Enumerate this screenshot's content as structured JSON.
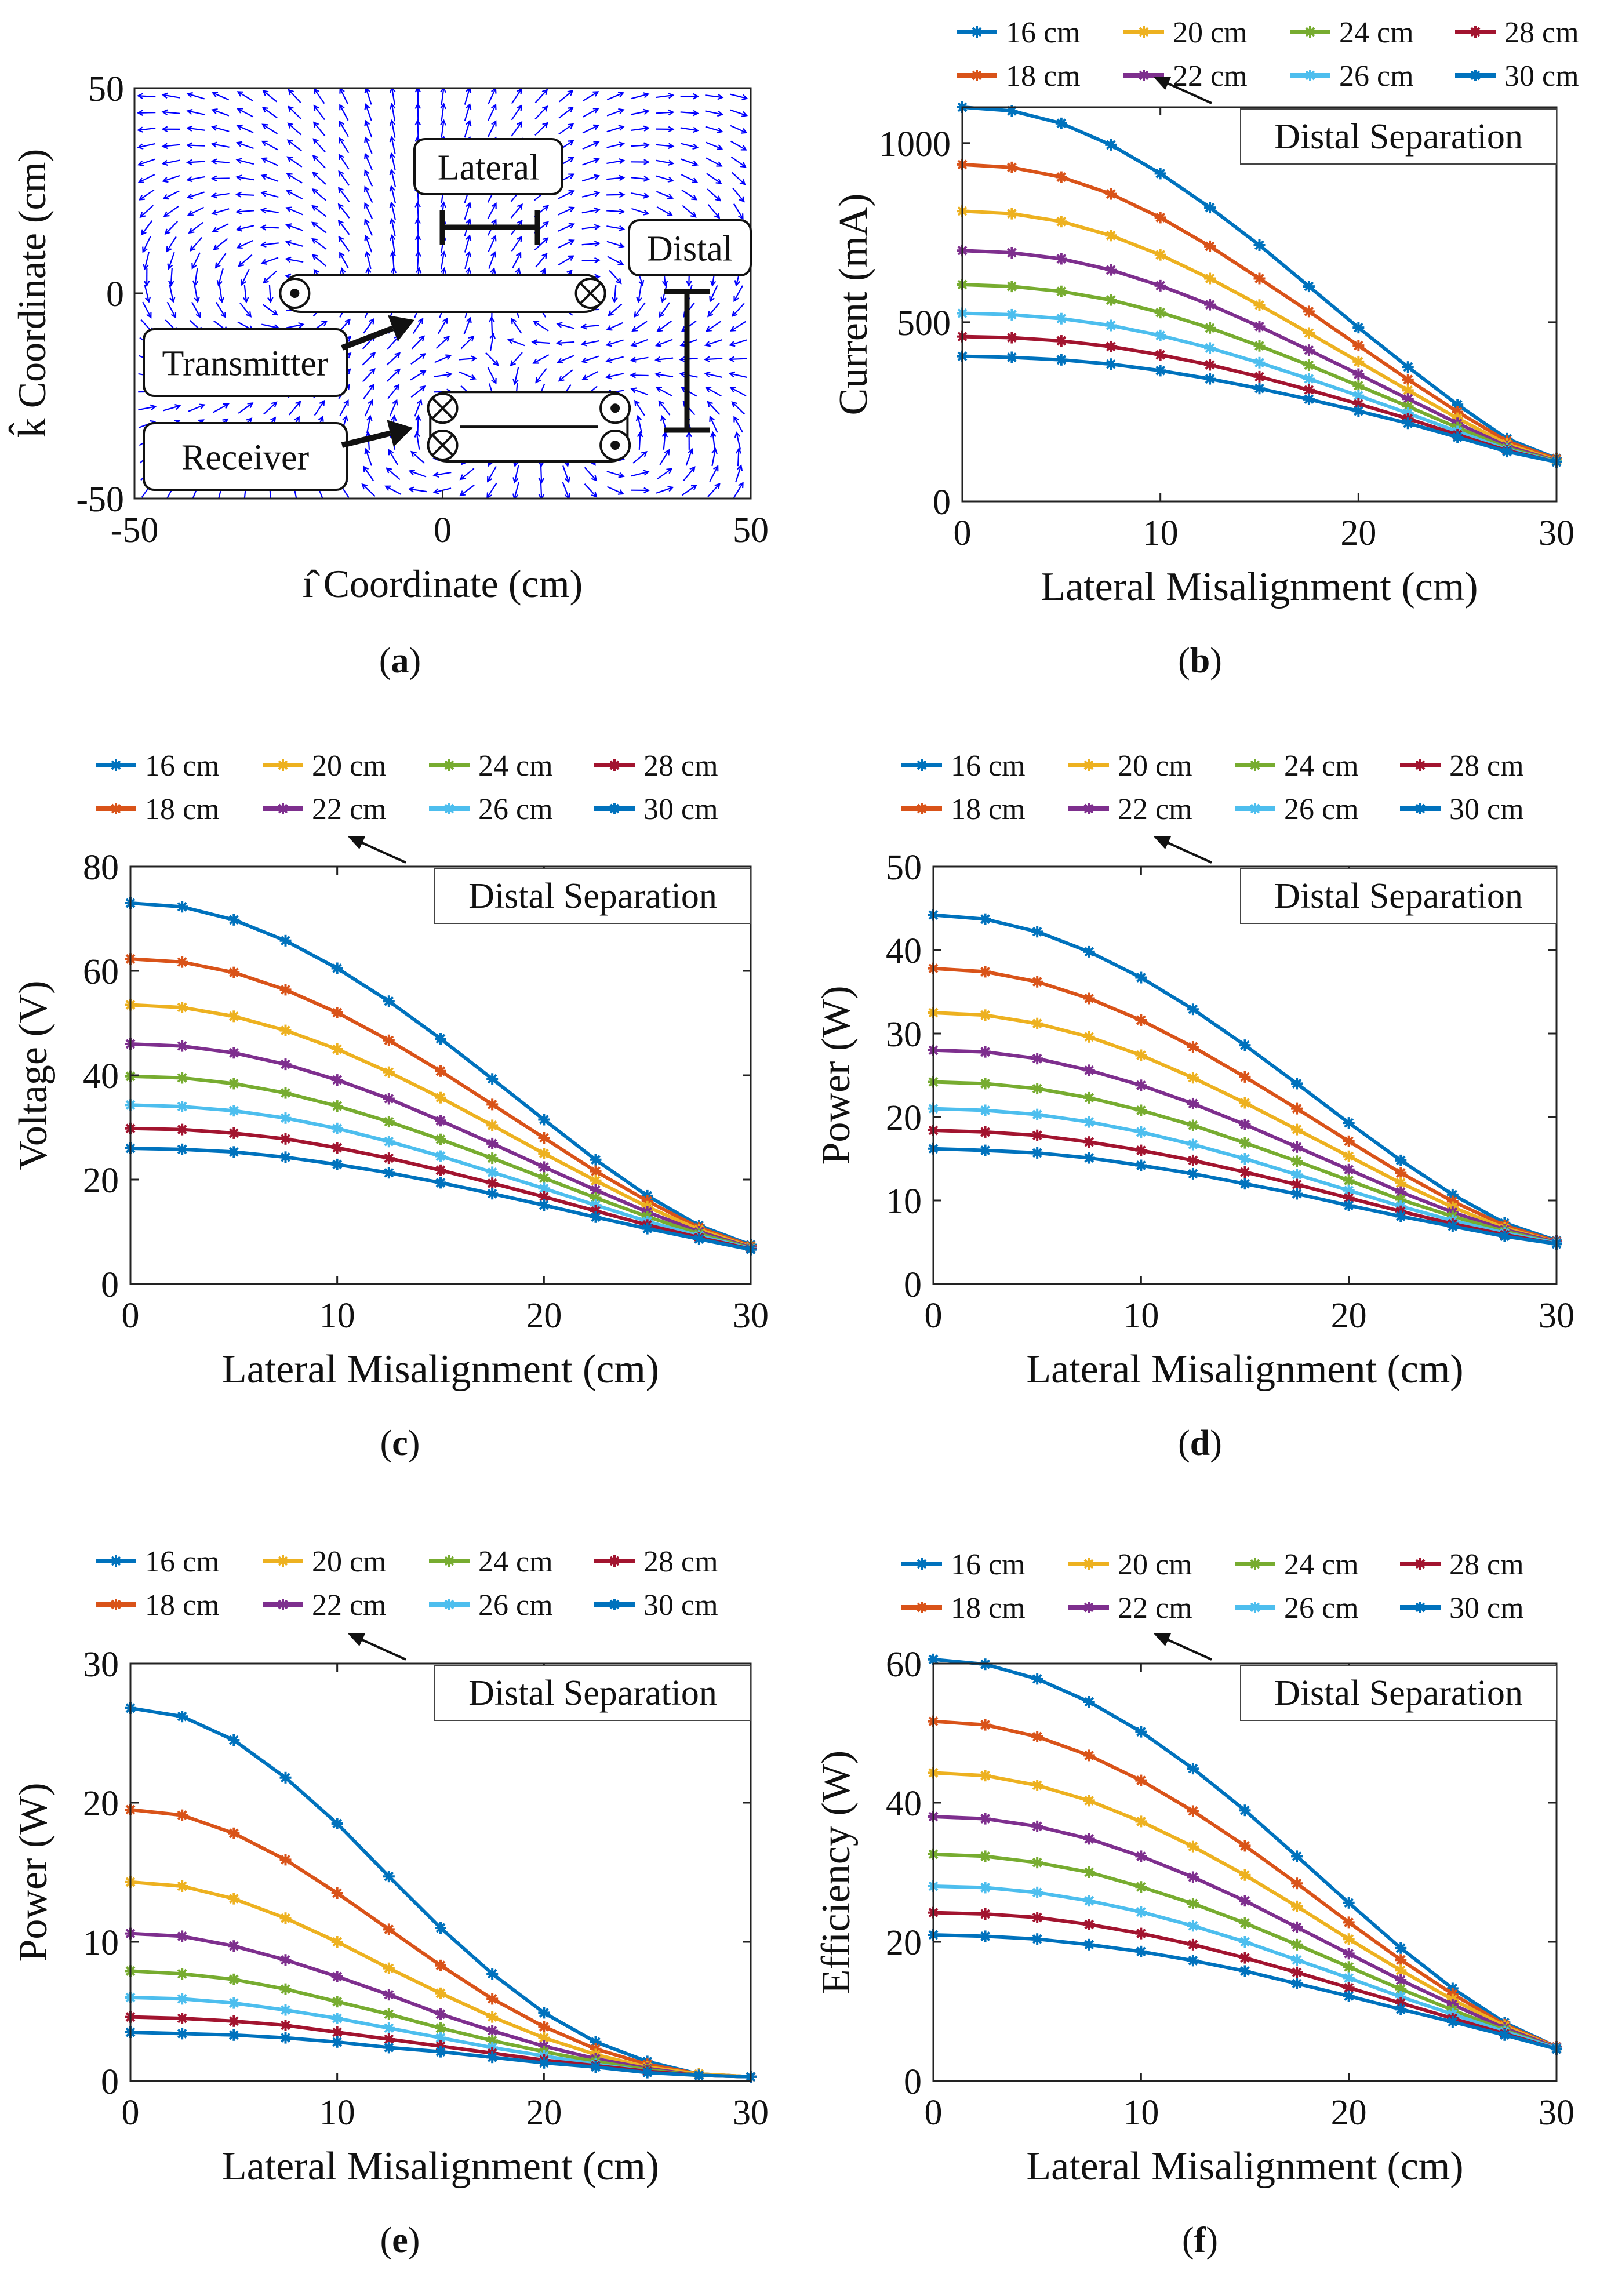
{
  "figure": {
    "captions": [
      "(a)",
      "(b)",
      "(c)",
      "(d)",
      "(e)",
      "(f)"
    ],
    "legend": {
      "entries": [
        "16 cm",
        "18 cm",
        "20 cm",
        "22 cm",
        "24 cm",
        "26 cm",
        "28 cm",
        "30 cm"
      ],
      "colors": [
        "#0072BD",
        "#D95319",
        "#EDB120",
        "#7E2F8E",
        "#77AC30",
        "#4DBEEE",
        "#A2142F",
        "#0072BD"
      ],
      "annotation": "Distal Separation"
    }
  },
  "chart_data": [
    {
      "id": "a",
      "type": "vector-field",
      "title": "",
      "xlabel": "ı̂ Coordinate (cm)",
      "ylabel": "k̂ Coordinate (cm)",
      "xlim": [
        -50,
        50
      ],
      "ylim": [
        -50,
        50
      ],
      "xticks": [
        "-50",
        "0",
        "50"
      ],
      "yticks": [
        "50",
        "0",
        "-50"
      ],
      "field_color": "#0000FF",
      "labels": {
        "lateral": "Lateral",
        "distal": "Distal",
        "transmitter": "Transmitter",
        "receiver": "Receiver"
      },
      "transmitter": {
        "x": [
          -24,
          24
        ],
        "y": 0
      },
      "receiver": {
        "x": [
          0,
          28
        ],
        "y": [
          -28,
          -37
        ]
      }
    },
    {
      "id": "b",
      "type": "line",
      "xlabel": "Lateral Misalignment (cm)",
      "ylabel": "Current (mA)",
      "xlim": [
        0,
        30
      ],
      "ylim": [
        0,
        1100
      ],
      "xticks": [
        0,
        10,
        20,
        30
      ],
      "yticks": [
        0,
        500,
        1000
      ],
      "x": [
        0,
        2.5,
        5,
        7.5,
        10,
        12.5,
        15,
        17.5,
        20,
        22.5,
        25,
        27.5,
        30
      ],
      "series": [
        {
          "name": "16 cm",
          "values": [
            1100,
            1090,
            1055,
            995,
            915,
            820,
            715,
            600,
            485,
            375,
            270,
            175,
            120
          ]
        },
        {
          "name": "18 cm",
          "values": [
            940,
            932,
            905,
            858,
            792,
            712,
            622,
            530,
            435,
            340,
            250,
            168,
            118
          ]
        },
        {
          "name": "20 cm",
          "values": [
            810,
            803,
            781,
            742,
            688,
            622,
            548,
            470,
            390,
            310,
            232,
            160,
            115
          ]
        },
        {
          "name": "22 cm",
          "values": [
            700,
            694,
            677,
            646,
            602,
            549,
            488,
            422,
            355,
            286,
            218,
            154,
            113
          ]
        },
        {
          "name": "24 cm",
          "values": [
            605,
            600,
            586,
            562,
            527,
            484,
            434,
            380,
            323,
            265,
            206,
            149,
            112
          ]
        },
        {
          "name": "26 cm",
          "values": [
            525,
            521,
            510,
            491,
            463,
            428,
            387,
            342,
            295,
            246,
            195,
            145,
            111
          ]
        },
        {
          "name": "28 cm",
          "values": [
            460,
            457,
            448,
            432,
            409,
            381,
            348,
            311,
            272,
            231,
            186,
            142,
            110
          ]
        },
        {
          "name": "30 cm",
          "values": [
            405,
            402,
            395,
            383,
            365,
            342,
            315,
            285,
            252,
            218,
            179,
            139,
            110
          ]
        }
      ]
    },
    {
      "id": "c",
      "type": "line",
      "xlabel": "Lateral Misalignment (cm)",
      "ylabel": "Voltage (V)",
      "xlim": [
        0,
        30
      ],
      "ylim": [
        0,
        80
      ],
      "xticks": [
        0,
        10,
        20,
        30
      ],
      "yticks": [
        0,
        20,
        40,
        60,
        80
      ],
      "x": [
        0,
        2.5,
        5,
        7.5,
        10,
        12.5,
        15,
        17.5,
        20,
        22.5,
        25,
        27.5,
        30
      ],
      "series": [
        {
          "name": "16 cm",
          "values": [
            73,
            72.3,
            69.8,
            65.8,
            60.5,
            54.2,
            47,
            39.3,
            31.5,
            23.8,
            16.9,
            11.2,
            7.5
          ]
        },
        {
          "name": "18 cm",
          "values": [
            62.3,
            61.7,
            59.7,
            56.4,
            52,
            46.7,
            40.8,
            34.4,
            28,
            21.6,
            15.9,
            10.8,
            7.3
          ]
        },
        {
          "name": "20 cm",
          "values": [
            53.5,
            53,
            51.3,
            48.6,
            45,
            40.6,
            35.7,
            30.4,
            25,
            19.8,
            14.8,
            10.4,
            7.1
          ]
        },
        {
          "name": "22 cm",
          "values": [
            46,
            45.6,
            44.3,
            42.1,
            39.1,
            35.5,
            31.3,
            26.9,
            22.4,
            18,
            13.8,
            10,
            7
          ]
        },
        {
          "name": "24 cm",
          "values": [
            39.8,
            39.5,
            38.4,
            36.6,
            34.1,
            31.1,
            27.7,
            24.1,
            20.3,
            16.5,
            12.9,
            9.6,
            6.9
          ]
        },
        {
          "name": "26 cm",
          "values": [
            34.3,
            34,
            33.2,
            31.8,
            29.8,
            27.3,
            24.5,
            21.4,
            18.3,
            15.1,
            12,
            9.2,
            6.8
          ]
        },
        {
          "name": "28 cm",
          "values": [
            29.8,
            29.6,
            28.9,
            27.8,
            26.1,
            24.1,
            21.8,
            19.3,
            16.7,
            14,
            11.3,
            8.9,
            6.7
          ]
        },
        {
          "name": "30 cm",
          "values": [
            26,
            25.8,
            25.3,
            24.3,
            22.9,
            21.3,
            19.4,
            17.3,
            15.1,
            12.8,
            10.6,
            8.6,
            6.6
          ]
        }
      ]
    },
    {
      "id": "d",
      "type": "line",
      "xlabel": "Lateral Misalignment (cm)",
      "ylabel": "Power (W)",
      "xlim": [
        0,
        30
      ],
      "ylim": [
        0,
        50
      ],
      "xticks": [
        0,
        10,
        20,
        30
      ],
      "yticks": [
        0,
        10,
        20,
        30,
        40,
        50
      ],
      "x": [
        0,
        2.5,
        5,
        7.5,
        10,
        12.5,
        15,
        17.5,
        20,
        22.5,
        25,
        27.5,
        30
      ],
      "series": [
        {
          "name": "16 cm",
          "values": [
            44.2,
            43.7,
            42.2,
            39.8,
            36.7,
            32.9,
            28.6,
            24,
            19.3,
            14.8,
            10.7,
            7.3,
            5.2
          ]
        },
        {
          "name": "18 cm",
          "values": [
            37.8,
            37.4,
            36.2,
            34.2,
            31.6,
            28.4,
            24.8,
            21,
            17.1,
            13.3,
            9.9,
            7,
            5.1
          ]
        },
        {
          "name": "20 cm",
          "values": [
            32.5,
            32.2,
            31.2,
            29.6,
            27.4,
            24.7,
            21.7,
            18.5,
            15.3,
            12.1,
            9.2,
            6.7,
            5
          ]
        },
        {
          "name": "22 cm",
          "values": [
            28,
            27.8,
            27,
            25.6,
            23.8,
            21.6,
            19.1,
            16.4,
            13.7,
            11,
            8.6,
            6.5,
            5
          ]
        },
        {
          "name": "24 cm",
          "values": [
            24.2,
            24,
            23.4,
            22.3,
            20.8,
            19,
            16.9,
            14.7,
            12.4,
            10.1,
            8.1,
            6.3,
            4.9
          ]
        },
        {
          "name": "26 cm",
          "values": [
            21,
            20.8,
            20.3,
            19.4,
            18.2,
            16.7,
            15,
            13.1,
            11.2,
            9.3,
            7.6,
            6.1,
            4.9
          ]
        },
        {
          "name": "28 cm",
          "values": [
            18.4,
            18.2,
            17.8,
            17,
            16,
            14.8,
            13.4,
            11.9,
            10.3,
            8.7,
            7.2,
            5.9,
            4.8
          ]
        },
        {
          "name": "30 cm",
          "values": [
            16.2,
            16,
            15.7,
            15.1,
            14.2,
            13.2,
            12,
            10.8,
            9.4,
            8.1,
            6.9,
            5.7,
            4.8
          ]
        }
      ]
    },
    {
      "id": "e",
      "type": "line",
      "xlabel": "Lateral Misalignment (cm)",
      "ylabel": "Power (W)",
      "xlim": [
        0,
        30
      ],
      "ylim": [
        0,
        30
      ],
      "xticks": [
        0,
        10,
        20,
        30
      ],
      "yticks": [
        0,
        10,
        20,
        30
      ],
      "x": [
        0,
        2.5,
        5,
        7.5,
        10,
        12.5,
        15,
        17.5,
        20,
        22.5,
        25,
        27.5,
        30
      ],
      "series": [
        {
          "name": "16 cm",
          "values": [
            26.8,
            26.2,
            24.5,
            21.8,
            18.5,
            14.7,
            11,
            7.7,
            4.9,
            2.8,
            1.4,
            0.5,
            0.3
          ]
        },
        {
          "name": "18 cm",
          "values": [
            19.5,
            19.1,
            17.8,
            15.9,
            13.5,
            10.9,
            8.3,
            5.9,
            3.9,
            2.3,
            1.2,
            0.5,
            0.3
          ]
        },
        {
          "name": "20 cm",
          "values": [
            14.3,
            14,
            13.1,
            11.7,
            10,
            8.1,
            6.3,
            4.6,
            3.1,
            1.9,
            1,
            0.5,
            0.3
          ]
        },
        {
          "name": "22 cm",
          "values": [
            10.6,
            10.4,
            9.7,
            8.7,
            7.5,
            6.2,
            4.8,
            3.6,
            2.5,
            1.6,
            0.9,
            0.4,
            0.3
          ]
        },
        {
          "name": "24 cm",
          "values": [
            7.9,
            7.7,
            7.3,
            6.6,
            5.7,
            4.8,
            3.8,
            2.9,
            2.1,
            1.4,
            0.8,
            0.4,
            0.3
          ]
        },
        {
          "name": "26 cm",
          "values": [
            6,
            5.9,
            5.6,
            5.1,
            4.5,
            3.8,
            3.1,
            2.4,
            1.8,
            1.2,
            0.7,
            0.4,
            0.3
          ]
        },
        {
          "name": "28 cm",
          "values": [
            4.6,
            4.5,
            4.3,
            4,
            3.5,
            3,
            2.5,
            2,
            1.5,
            1.1,
            0.7,
            0.4,
            0.3
          ]
        },
        {
          "name": "30 cm",
          "values": [
            3.5,
            3.4,
            3.3,
            3.1,
            2.8,
            2.4,
            2.1,
            1.7,
            1.3,
            1,
            0.6,
            0.4,
            0.3
          ]
        }
      ]
    },
    {
      "id": "f",
      "type": "line",
      "xlabel": "Lateral Misalignment (cm)",
      "ylabel": "Efficiency (W)",
      "xlim": [
        0,
        30
      ],
      "ylim": [
        0,
        60
      ],
      "xticks": [
        0,
        10,
        20,
        30
      ],
      "yticks": [
        0,
        20,
        40,
        60
      ],
      "x": [
        0,
        2.5,
        5,
        7.5,
        10,
        12.5,
        15,
        17.5,
        20,
        22.5,
        25,
        27.5,
        30
      ],
      "series": [
        {
          "name": "16 cm",
          "values": [
            60.6,
            59.9,
            57.8,
            54.5,
            50.2,
            44.9,
            38.9,
            32.3,
            25.6,
            19.1,
            13.3,
            8.4,
            4.9
          ]
        },
        {
          "name": "18 cm",
          "values": [
            51.7,
            51.2,
            49.5,
            46.8,
            43.2,
            38.8,
            33.8,
            28.4,
            22.8,
            17.4,
            12.5,
            8.1,
            4.9
          ]
        },
        {
          "name": "20 cm",
          "values": [
            44.3,
            43.9,
            42.5,
            40.3,
            37.3,
            33.7,
            29.6,
            25.1,
            20.4,
            15.9,
            11.7,
            7.9,
            4.8
          ]
        },
        {
          "name": "22 cm",
          "values": [
            38,
            37.7,
            36.6,
            34.8,
            32.3,
            29.3,
            25.9,
            22.1,
            18.3,
            14.5,
            11,
            7.6,
            4.8
          ]
        },
        {
          "name": "24 cm",
          "values": [
            32.6,
            32.3,
            31.4,
            30,
            27.9,
            25.5,
            22.7,
            19.6,
            16.4,
            13.2,
            10.2,
            7.3,
            4.7
          ]
        },
        {
          "name": "26 cm",
          "values": [
            28,
            27.8,
            27.1,
            25.9,
            24.3,
            22.3,
            20,
            17.4,
            14.8,
            12.1,
            9.6,
            7.1,
            4.7
          ]
        },
        {
          "name": "28 cm",
          "values": [
            24.2,
            24,
            23.5,
            22.5,
            21.2,
            19.6,
            17.7,
            15.6,
            13.4,
            11.2,
            9,
            6.8,
            4.6
          ]
        },
        {
          "name": "30 cm",
          "values": [
            21,
            20.8,
            20.4,
            19.6,
            18.6,
            17.3,
            15.8,
            14,
            12.2,
            10.3,
            8.5,
            6.6,
            4.6
          ]
        }
      ]
    }
  ]
}
